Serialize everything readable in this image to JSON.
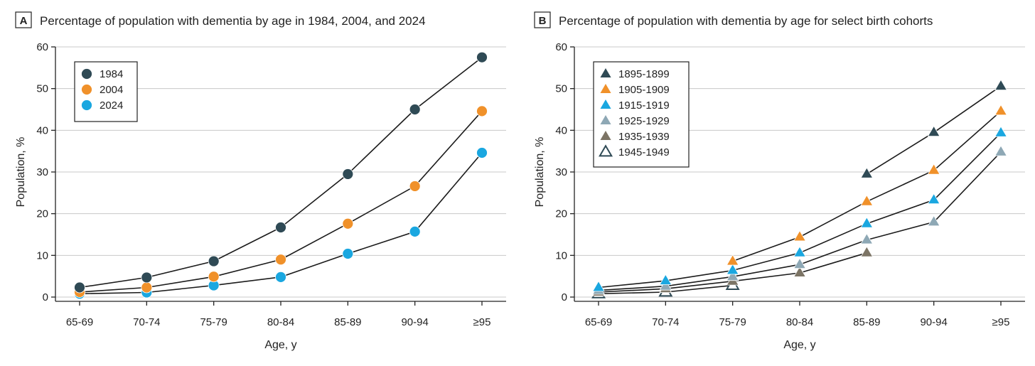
{
  "chart_data": [
    {
      "panel_letter": "A",
      "type": "line",
      "marker": "circle",
      "title": "Percentage of population with dementia by age in 1984, 2004, and 2024",
      "xlabel": "Age, y",
      "ylabel": "Population, %",
      "ylim": [
        0,
        60
      ],
      "yticks": [
        "0",
        "10",
        "20",
        "30",
        "40",
        "50",
        "60"
      ],
      "categories": [
        "65-69",
        "70-74",
        "75-79",
        "80-84",
        "85-89",
        "90-94",
        "≥95"
      ],
      "grid": true,
      "legend_position": "top-left",
      "series": [
        {
          "name": "1984",
          "color": "#2f4a55",
          "filled": true,
          "x": [
            "65-69",
            "70-74",
            "75-79",
            "80-84",
            "85-89",
            "90-94",
            "≥95"
          ],
          "values": [
            2.3,
            4.7,
            8.6,
            16.7,
            29.5,
            45.0,
            57.5
          ]
        },
        {
          "name": "2004",
          "color": "#f0912a",
          "filled": true,
          "x": [
            "65-69",
            "70-74",
            "75-79",
            "80-84",
            "85-89",
            "90-94",
            "≥95"
          ],
          "values": [
            1.2,
            2.3,
            4.9,
            9.0,
            17.6,
            26.6,
            44.6
          ]
        },
        {
          "name": "2024",
          "color": "#1aa7e0",
          "filled": true,
          "x": [
            "65-69",
            "70-74",
            "75-79",
            "80-84",
            "85-89",
            "90-94",
            "≥95"
          ],
          "values": [
            0.8,
            1.1,
            2.8,
            4.8,
            10.4,
            15.7,
            34.6
          ]
        }
      ]
    },
    {
      "panel_letter": "B",
      "type": "line",
      "marker": "triangle",
      "title": "Percentage of population with dementia by age for select birth cohorts",
      "xlabel": "Age, y",
      "ylabel": "Population, %",
      "ylim": [
        0,
        60
      ],
      "yticks": [
        "0",
        "10",
        "20",
        "30",
        "40",
        "50",
        "60"
      ],
      "categories": [
        "65-69",
        "70-74",
        "75-79",
        "80-84",
        "85-89",
        "90-94",
        "≥95"
      ],
      "grid": true,
      "legend_position": "top-left",
      "series": [
        {
          "name": "1895-1899",
          "color": "#2f4a55",
          "filled": true,
          "x": [
            "85-89",
            "90-94",
            "≥95"
          ],
          "values": [
            29.5,
            39.5,
            50.6
          ]
        },
        {
          "name": "1905-1909",
          "color": "#f0912a",
          "filled": true,
          "x": [
            "75-79",
            "80-84",
            "85-89",
            "90-94",
            "≥95"
          ],
          "values": [
            8.6,
            14.4,
            22.9,
            30.4,
            44.6
          ]
        },
        {
          "name": "1915-1919",
          "color": "#1aa7e0",
          "filled": true,
          "x": [
            "65-69",
            "70-74",
            "75-79",
            "80-84",
            "85-89",
            "90-94",
            "≥95"
          ],
          "values": [
            2.3,
            3.9,
            6.4,
            10.6,
            17.6,
            23.3,
            39.4
          ]
        },
        {
          "name": "1925-1929",
          "color": "#8ea8b5",
          "filled": true,
          "x": [
            "65-69",
            "70-74",
            "75-79",
            "80-84",
            "85-89",
            "90-94",
            "≥95"
          ],
          "values": [
            1.6,
            2.6,
            4.9,
            7.8,
            13.7,
            18.0,
            34.8
          ]
        },
        {
          "name": "1935-1939",
          "color": "#7c7465",
          "filled": true,
          "x": [
            "65-69",
            "70-74",
            "75-79",
            "80-84",
            "85-89"
          ],
          "values": [
            1.2,
            2.0,
            3.8,
            5.8,
            10.6
          ]
        },
        {
          "name": "1945-1949",
          "color": "#2f4a55",
          "filled": false,
          "x": [
            "65-69",
            "70-74",
            "75-79"
          ],
          "values": [
            0.8,
            1.2,
            2.8
          ]
        }
      ]
    }
  ]
}
